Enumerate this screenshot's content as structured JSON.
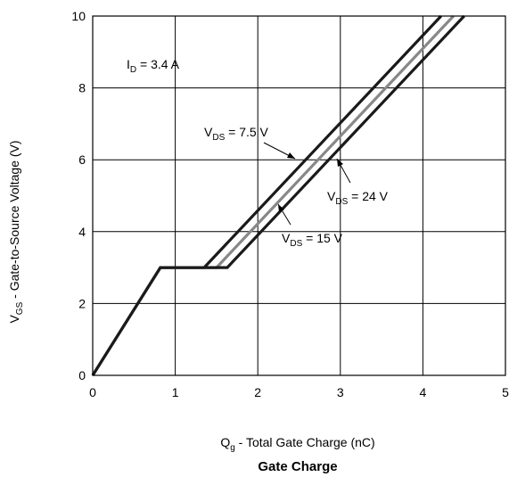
{
  "chart_data": {
    "type": "line",
    "title": "Gate Charge",
    "xlabel": {
      "main": "Q",
      "sub": "g",
      "rest": " - Total Gate Charge (nC)"
    },
    "ylabel": {
      "main": "V",
      "sub": "GS",
      "rest": " - Gate-to-Source Voltage (V)"
    },
    "xlim": [
      0,
      5
    ],
    "ylim": [
      0,
      10
    ],
    "xticks": [
      "0",
      "1",
      "2",
      "3",
      "4",
      "5"
    ],
    "yticks": [
      "0",
      "2",
      "4",
      "6",
      "8",
      "10"
    ],
    "grid": true,
    "condition": {
      "main": "I",
      "sub": "D",
      "rest": " = 3.4 A"
    },
    "series": [
      {
        "label_main": "V",
        "label_sub": "DS",
        "label_rest": " = 7.5 V",
        "color": "#1a1a1a",
        "x": [
          0,
          0.82,
          1.35,
          4.22
        ],
        "y": [
          0,
          3.0,
          3.0,
          10
        ]
      },
      {
        "label_main": "V",
        "label_sub": "DS",
        "label_rest": " = 15 V",
        "color": "#888888",
        "x": [
          0,
          0.82,
          1.5,
          4.37
        ],
        "y": [
          0,
          3.0,
          3.0,
          10
        ]
      },
      {
        "label_main": "V",
        "label_sub": "DS",
        "label_rest": " = 24 V",
        "color": "#1a1a1a",
        "x": [
          0,
          0.82,
          1.63,
          4.5
        ],
        "y": [
          0,
          3.0,
          3.0,
          10
        ]
      }
    ]
  }
}
